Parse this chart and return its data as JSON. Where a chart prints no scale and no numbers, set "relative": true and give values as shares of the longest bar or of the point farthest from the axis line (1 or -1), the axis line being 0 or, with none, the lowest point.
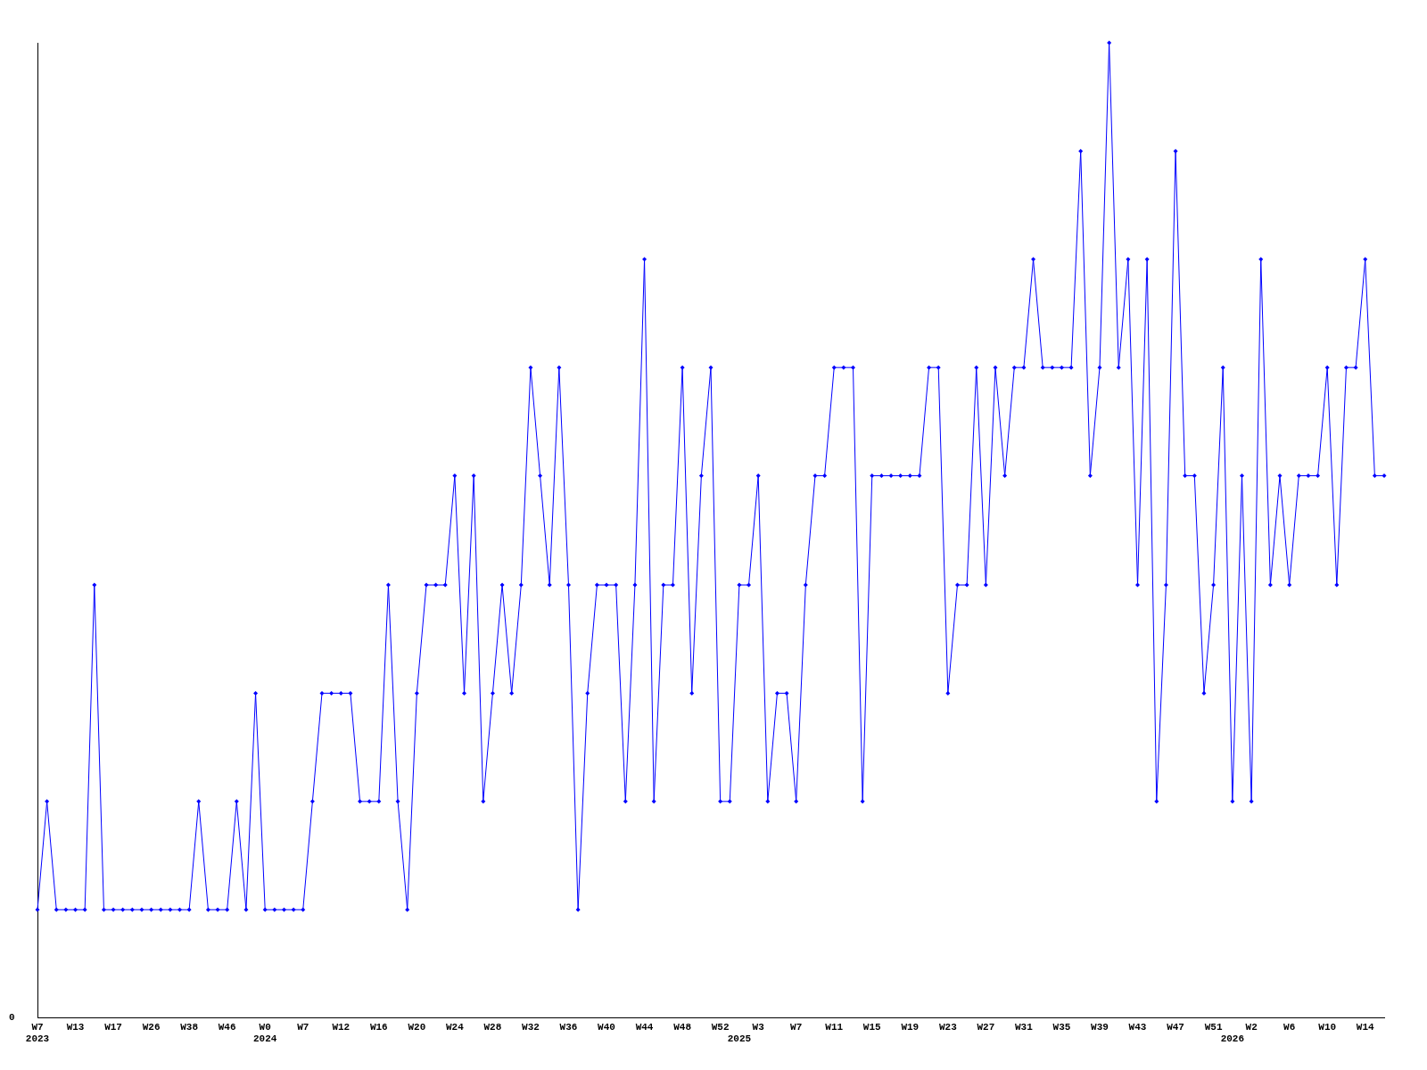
{
  "chart_data": {
    "type": "line",
    "relative": true,
    "grid": false,
    "legend": false,
    "marker": "diamond",
    "line_style": "solid",
    "categories": [
      "W7\n2023",
      null,
      null,
      null,
      "W13",
      null,
      null,
      null,
      "W17",
      null,
      null,
      null,
      "W26",
      null,
      null,
      null,
      "W38",
      null,
      null,
      null,
      "W46",
      null,
      null,
      null,
      "W0\n2024",
      null,
      null,
      null,
      "W7",
      null,
      null,
      null,
      "W12",
      null,
      null,
      null,
      "W16",
      null,
      null,
      null,
      "W20",
      null,
      null,
      null,
      "W24",
      null,
      null,
      null,
      "W28",
      null,
      null,
      null,
      "W32",
      null,
      null,
      null,
      "W36",
      null,
      null,
      null,
      "W40",
      null,
      null,
      null,
      "W44",
      null,
      null,
      null,
      "W48",
      null,
      null,
      null,
      "W52",
      null,
      "\n2025",
      null,
      "W3",
      null,
      null,
      null,
      "W7",
      null,
      null,
      null,
      "W11",
      null,
      null,
      null,
      "W15",
      null,
      null,
      null,
      "W19",
      null,
      null,
      null,
      "W23",
      null,
      null,
      null,
      "W27",
      null,
      null,
      null,
      "W31",
      null,
      null,
      null,
      "W35",
      null,
      null,
      null,
      "W39",
      null,
      null,
      null,
      "W43",
      null,
      null,
      null,
      "W47",
      null,
      null,
      null,
      "W51",
      null,
      "\n2026",
      null,
      "W2",
      null,
      null,
      null,
      "W6",
      null,
      null,
      null,
      "W10",
      null,
      null,
      null,
      "W14",
      null,
      null
    ],
    "series": [
      {
        "color": "#0000ff",
        "values": [
          0.111,
          0.222,
          0.111,
          0.111,
          0.111,
          0.111,
          0.444,
          0.111,
          0.111,
          0.111,
          0.111,
          0.111,
          0.111,
          0.111,
          0.111,
          0.111,
          0.111,
          0.222,
          0.111,
          0.111,
          0.111,
          0.222,
          0.111,
          0.333,
          0.111,
          0.111,
          0.111,
          0.111,
          0.111,
          0.222,
          0.333,
          0.333,
          0.333,
          0.333,
          0.222,
          0.222,
          0.222,
          0.444,
          0.222,
          0.111,
          0.333,
          0.444,
          0.444,
          0.444,
          0.556,
          0.333,
          0.556,
          0.222,
          0.333,
          0.444,
          0.333,
          0.444,
          0.667,
          0.556,
          0.444,
          0.667,
          0.444,
          0.111,
          0.333,
          0.444,
          0.444,
          0.444,
          0.222,
          0.444,
          0.778,
          0.222,
          0.444,
          0.444,
          0.667,
          0.333,
          0.556,
          0.667,
          0.222,
          0.222,
          0.444,
          0.444,
          0.556,
          0.222,
          0.333,
          0.333,
          0.222,
          0.444,
          0.556,
          0.556,
          0.667,
          0.667,
          0.667,
          0.222,
          0.556,
          0.556,
          0.556,
          0.556,
          0.556,
          0.556,
          0.667,
          0.667,
          0.333,
          0.444,
          0.444,
          0.667,
          0.444,
          0.667,
          0.556,
          0.667,
          0.667,
          0.778,
          0.667,
          0.667,
          0.667,
          0.667,
          0.889,
          0.556,
          0.667,
          1,
          0.667,
          0.778,
          0.444,
          0.778,
          0.222,
          0.444,
          0.889,
          0.556,
          0.556,
          0.333,
          0.444,
          0.667,
          0.222,
          0.556,
          0.222,
          0.778,
          0.444,
          0.556,
          0.444,
          0.556,
          0.556,
          0.556,
          0.667,
          0.444,
          0.667,
          0.667,
          0.778,
          0.556,
          0.556
        ]
      }
    ],
    "annotations": [
      "0"
    ]
  }
}
